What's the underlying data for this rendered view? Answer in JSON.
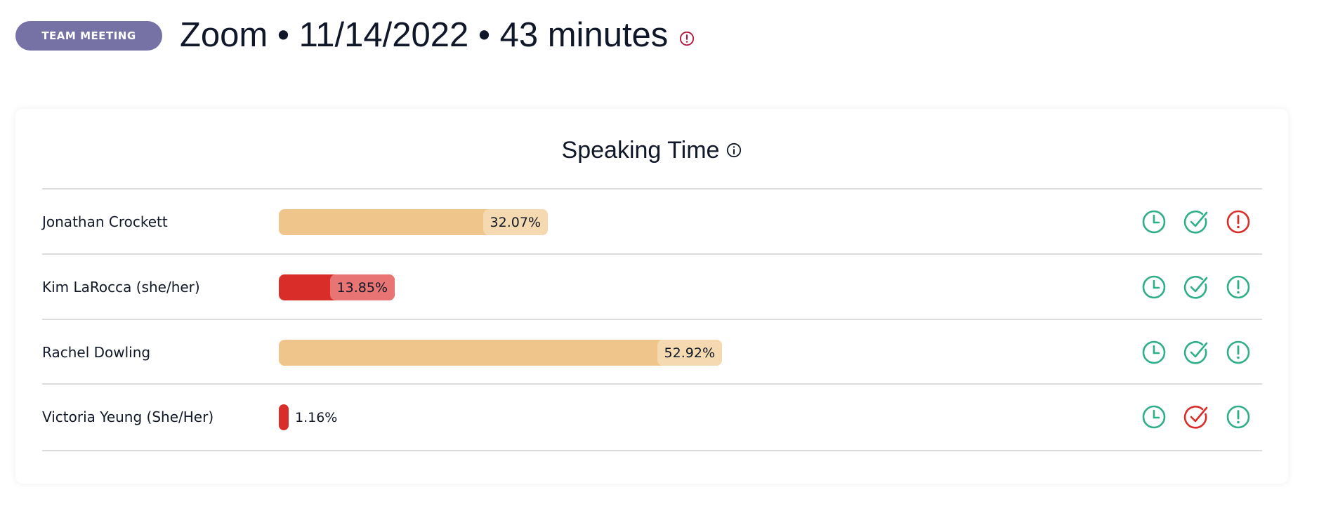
{
  "header": {
    "badge": "TEAM MEETING",
    "title": "Zoom • 11/14/2022 • 43 minutes",
    "alert_icon": "alert-circle-icon",
    "alert_color": "#b3123a"
  },
  "card": {
    "title": "Speaking Time",
    "info_icon": "info-icon"
  },
  "colors": {
    "ok_bar": "#f0c58b",
    "ok_label": "#f5d9b0",
    "bad_bar": "#d92d2a",
    "bad_label": "#e87573",
    "green": "#2fae8a",
    "red": "#d92d2a"
  },
  "participants": [
    {
      "name": "Jonathan Crockett",
      "percent": 32.07,
      "percent_label": "32.07%",
      "status": "ok",
      "icons": {
        "clock": "green",
        "check": "green",
        "alert": "red"
      }
    },
    {
      "name": "Kim LaRocca (she/her)",
      "percent": 13.85,
      "percent_label": "13.85%",
      "status": "bad",
      "icons": {
        "clock": "green",
        "check": "green",
        "alert": "green"
      }
    },
    {
      "name": "Rachel Dowling",
      "percent": 52.92,
      "percent_label": "52.92%",
      "status": "ok",
      "icons": {
        "clock": "green",
        "check": "green",
        "alert": "green"
      }
    },
    {
      "name": "Victoria Yeung (She/Her)",
      "percent": 1.16,
      "percent_label": "1.16%",
      "status": "bad",
      "icons": {
        "clock": "green",
        "check": "red",
        "alert": "green"
      }
    }
  ]
}
